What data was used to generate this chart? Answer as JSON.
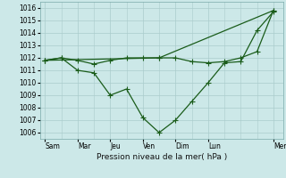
{
  "xlabel": "Pression niveau de la mer( hPa )",
  "background_color": "#cce8e8",
  "grid_color": "#aacccc",
  "line_color": "#1a5c1a",
  "ylim": [
    1005.5,
    1016.5
  ],
  "yticks": [
    1006,
    1007,
    1008,
    1009,
    1010,
    1011,
    1012,
    1013,
    1014,
    1015,
    1016
  ],
  "day_labels": [
    "Sam",
    "Mar",
    "Jeu",
    "Ven",
    "Dim",
    "Lun",
    "Mer"
  ],
  "day_positions": [
    0,
    1,
    2,
    3,
    4,
    5,
    7
  ],
  "xlim": [
    -0.15,
    7.3
  ],
  "series1_x": [
    0.0,
    0.5,
    1.0,
    1.5,
    2.0,
    2.5,
    3.0,
    3.5,
    4.0,
    4.5,
    5.0,
    5.5,
    6.0,
    6.5,
    7.0
  ],
  "series1_y": [
    1011.8,
    1012.0,
    1011.8,
    1011.5,
    1011.8,
    1012.0,
    1012.0,
    1012.0,
    1012.0,
    1011.7,
    1011.6,
    1011.7,
    1012.0,
    1012.5,
    1015.8
  ],
  "series2_x": [
    0.0,
    0.5,
    1.0,
    1.5,
    2.0,
    2.5,
    3.0,
    3.5,
    4.0,
    4.5,
    5.0,
    5.5,
    6.0,
    6.5,
    7.0,
    7.0
  ],
  "series2_y": [
    1011.8,
    1012.0,
    1011.0,
    1010.8,
    1009.0,
    1009.5,
    1007.2,
    1006.0,
    1007.0,
    1008.5,
    1010.0,
    1011.6,
    1011.7,
    1014.2,
    1015.7,
    1015.7
  ],
  "series3_x": [
    0.0,
    3.5,
    7.0
  ],
  "series3_y": [
    1011.8,
    1012.0,
    1015.8
  ],
  "marker_size": 2.5,
  "linewidth": 0.9,
  "xlabel_fontsize": 6.5,
  "tick_fontsize": 5.5
}
